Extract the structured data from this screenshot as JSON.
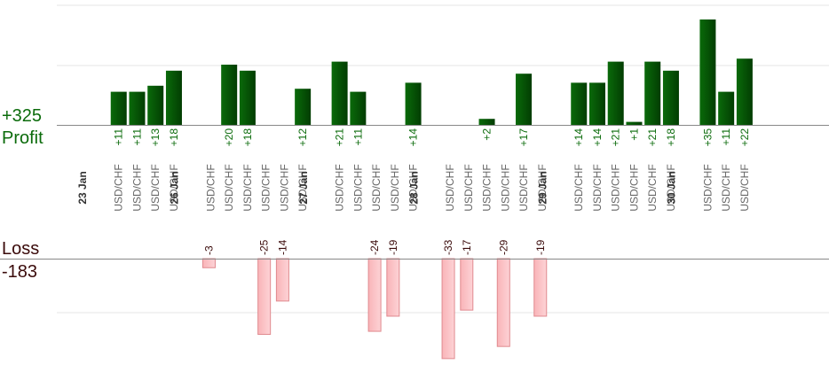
{
  "summary": {
    "profit_value": "+325",
    "profit_label": "Profit",
    "loss_label": "Loss",
    "loss_value": "-183"
  },
  "colors": {
    "profit_bar": "#0a6a0a",
    "profit_bar_edge": "#023d02",
    "loss_bar": "#f9b4b8",
    "loss_bar_edge": "#e08a8f",
    "profit_text": "#0b6b0b",
    "loss_text": "#3a0a0a",
    "date_text": "#333333",
    "pair_text": "#666666",
    "gridline": "#e6e6e6",
    "axis": "#888888"
  },
  "chart_data": {
    "type": "bar",
    "title": "",
    "xlabel": "",
    "ylabel": "",
    "days": [
      {
        "date": "23 Jan",
        "trades": [
          {
            "pair": "USD/CHF",
            "value": 11
          },
          {
            "pair": "USD/CHF",
            "value": 11
          },
          {
            "pair": "USD/CHF",
            "value": 13
          },
          {
            "pair": "USD/CHF",
            "value": 18
          }
        ]
      },
      {
        "date": "26 Jan",
        "trades": [
          {
            "pair": "USD/CHF",
            "value": -3
          },
          {
            "pair": "USD/CHF",
            "value": 20
          },
          {
            "pair": "USD/CHF",
            "value": 18
          },
          {
            "pair": "USD/CHF",
            "value": -25
          },
          {
            "pair": "USD/CHF",
            "value": -14
          },
          {
            "pair": "USD/CHF",
            "value": 12
          }
        ]
      },
      {
        "date": "27 Jan",
        "trades": [
          {
            "pair": "USD/CHF",
            "value": 21
          },
          {
            "pair": "USD/CHF",
            "value": 11
          },
          {
            "pair": "USD/CHF",
            "value": -24
          },
          {
            "pair": "USD/CHF",
            "value": -19
          },
          {
            "pair": "USD/CHF",
            "value": 14
          }
        ]
      },
      {
        "date": "28 Jan",
        "trades": [
          {
            "pair": "USD/CHF",
            "value": -33
          },
          {
            "pair": "USD/CHF",
            "value": -17
          },
          {
            "pair": "USD/CHF",
            "value": 2
          },
          {
            "pair": "USD/CHF",
            "value": -29
          },
          {
            "pair": "USD/CHF",
            "value": 17
          },
          {
            "pair": "USD/CHF",
            "value": -19
          }
        ]
      },
      {
        "date": "29 Jan",
        "trades": [
          {
            "pair": "USD/CHF",
            "value": 14
          },
          {
            "pair": "USD/CHF",
            "value": 14
          },
          {
            "pair": "USD/CHF",
            "value": 21
          },
          {
            "pair": "USD/CHF",
            "value": 1
          },
          {
            "pair": "USD/CHF",
            "value": 21
          },
          {
            "pair": "USD/CHF",
            "value": 18
          }
        ]
      },
      {
        "date": "30 Jan",
        "trades": [
          {
            "pair": "USD/CHF",
            "value": 35
          },
          {
            "pair": "USD/CHF",
            "value": 11
          },
          {
            "pair": "USD/CHF",
            "value": 22
          }
        ]
      }
    ],
    "profit_ylim": [
      0,
      20
    ],
    "loss_ylim": [
      0,
      30
    ],
    "grid": true,
    "legend": "none"
  }
}
